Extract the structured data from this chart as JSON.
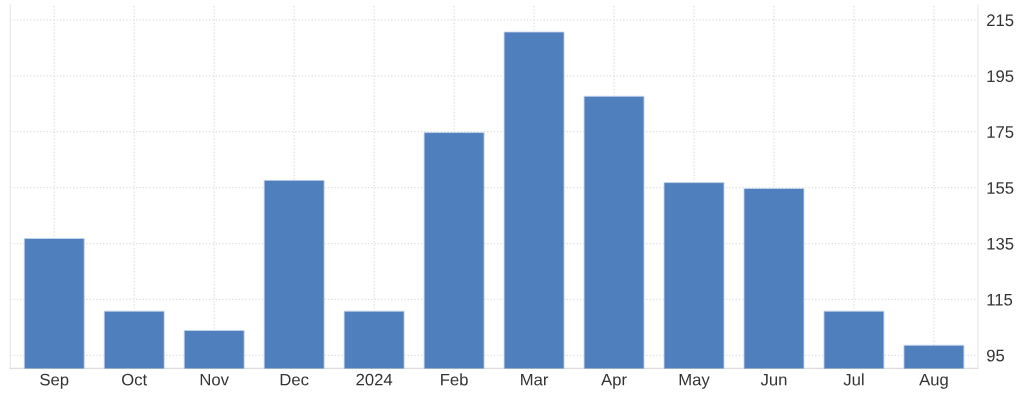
{
  "chart_data": {
    "type": "bar",
    "categories": [
      "Sep",
      "Oct",
      "Nov",
      "Dec",
      "2024",
      "Feb",
      "Mar",
      "Apr",
      "May",
      "Jun",
      "Jul",
      "Aug"
    ],
    "values": [
      136.8,
      110.8,
      103.9,
      157.6,
      110.8,
      174.7,
      210.7,
      187.7,
      156.8,
      154.7,
      110.8,
      98.6
    ],
    "color": "#4f7fbd",
    "ylim": [
      90.3,
      220.3
    ],
    "yticks": [
      95,
      115,
      135,
      155,
      175,
      195,
      215
    ],
    "grid": true
  }
}
